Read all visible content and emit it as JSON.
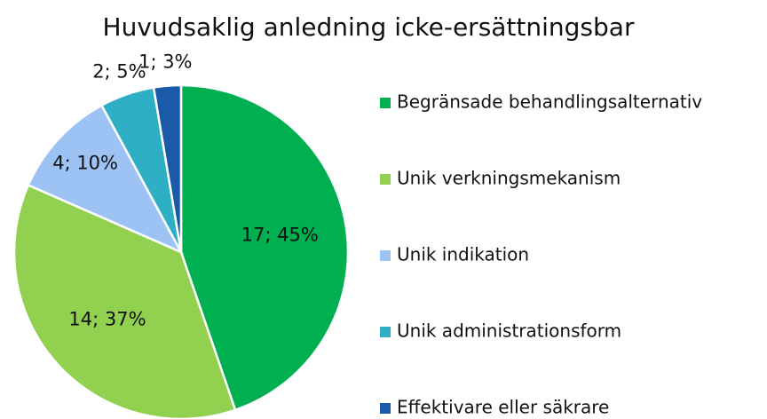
{
  "chart_data": {
    "type": "pie",
    "title": "Huvudsaklig anledning icke-ersättningsbar",
    "categories": [
      "Begränsade behandlingsalternativ",
      "Unik verkningsmekanism",
      "Unik indikation",
      "Unik administrationsform",
      "Effektivare eller säkrare"
    ],
    "values": [
      17,
      14,
      4,
      2,
      1
    ],
    "value_labels": [
      "17; 45%",
      "14; 37%",
      "4; 10%",
      "2; 5%",
      "1; 3%"
    ],
    "colors": [
      "#00b050",
      "#92d050",
      "#9dc3f5",
      "#2eafc4",
      "#1a5aa8"
    ],
    "legend": "right"
  }
}
